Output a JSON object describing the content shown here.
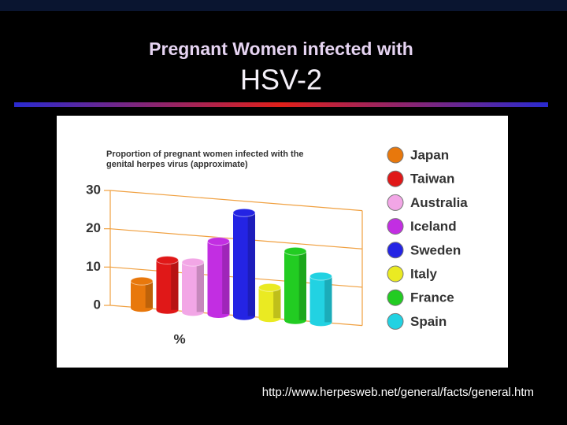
{
  "header": {
    "title": "Pregnant Women infected with",
    "subtitle": "HSV-2"
  },
  "chart_data": {
    "type": "bar",
    "title": "Proportion of pregnant women infected with the genital herpes virus (approximate)",
    "ylabel": "%",
    "categories": [
      "Japan",
      "Taiwan",
      "Australia",
      "Iceland",
      "Sweden",
      "Italy",
      "France",
      "Spain"
    ],
    "values": [
      7,
      13,
      13,
      19,
      27,
      8,
      18,
      12
    ],
    "colors": [
      "#e8780c",
      "#e01818",
      "#f2a6e6",
      "#c22ee2",
      "#2424e4",
      "#eaea22",
      "#22cc22",
      "#22d2e2"
    ],
    "ylim": [
      0,
      30
    ],
    "yticks": [
      0,
      10,
      20,
      30
    ],
    "grid": true,
    "legend": "right"
  },
  "footer": {
    "source": "http://www.herpesweb.net/general/facts/general.htm"
  }
}
